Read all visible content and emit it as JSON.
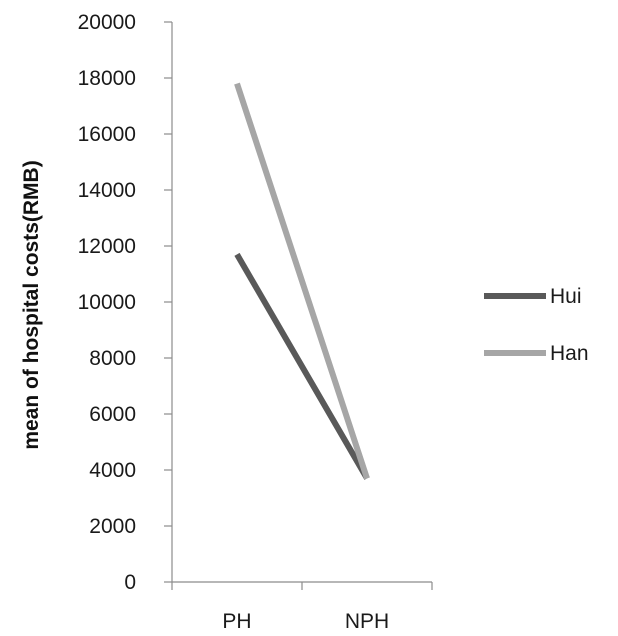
{
  "chart_data": {
    "type": "line",
    "title": "",
    "xlabel": "",
    "ylabel": "mean of hospital costs(RMB)",
    "categories": [
      "PH",
      "NPH"
    ],
    "ylim": [
      0,
      20000
    ],
    "yticks": [
      0,
      2000,
      4000,
      6000,
      8000,
      10000,
      12000,
      14000,
      16000,
      18000,
      20000
    ],
    "grid": false,
    "legend_position": "right",
    "series": [
      {
        "name": "Hui",
        "values": [
          11700,
          3700
        ],
        "color": "#595959"
      },
      {
        "name": "Han",
        "values": [
          17800,
          3700
        ],
        "color": "#a6a6a6"
      }
    ]
  }
}
